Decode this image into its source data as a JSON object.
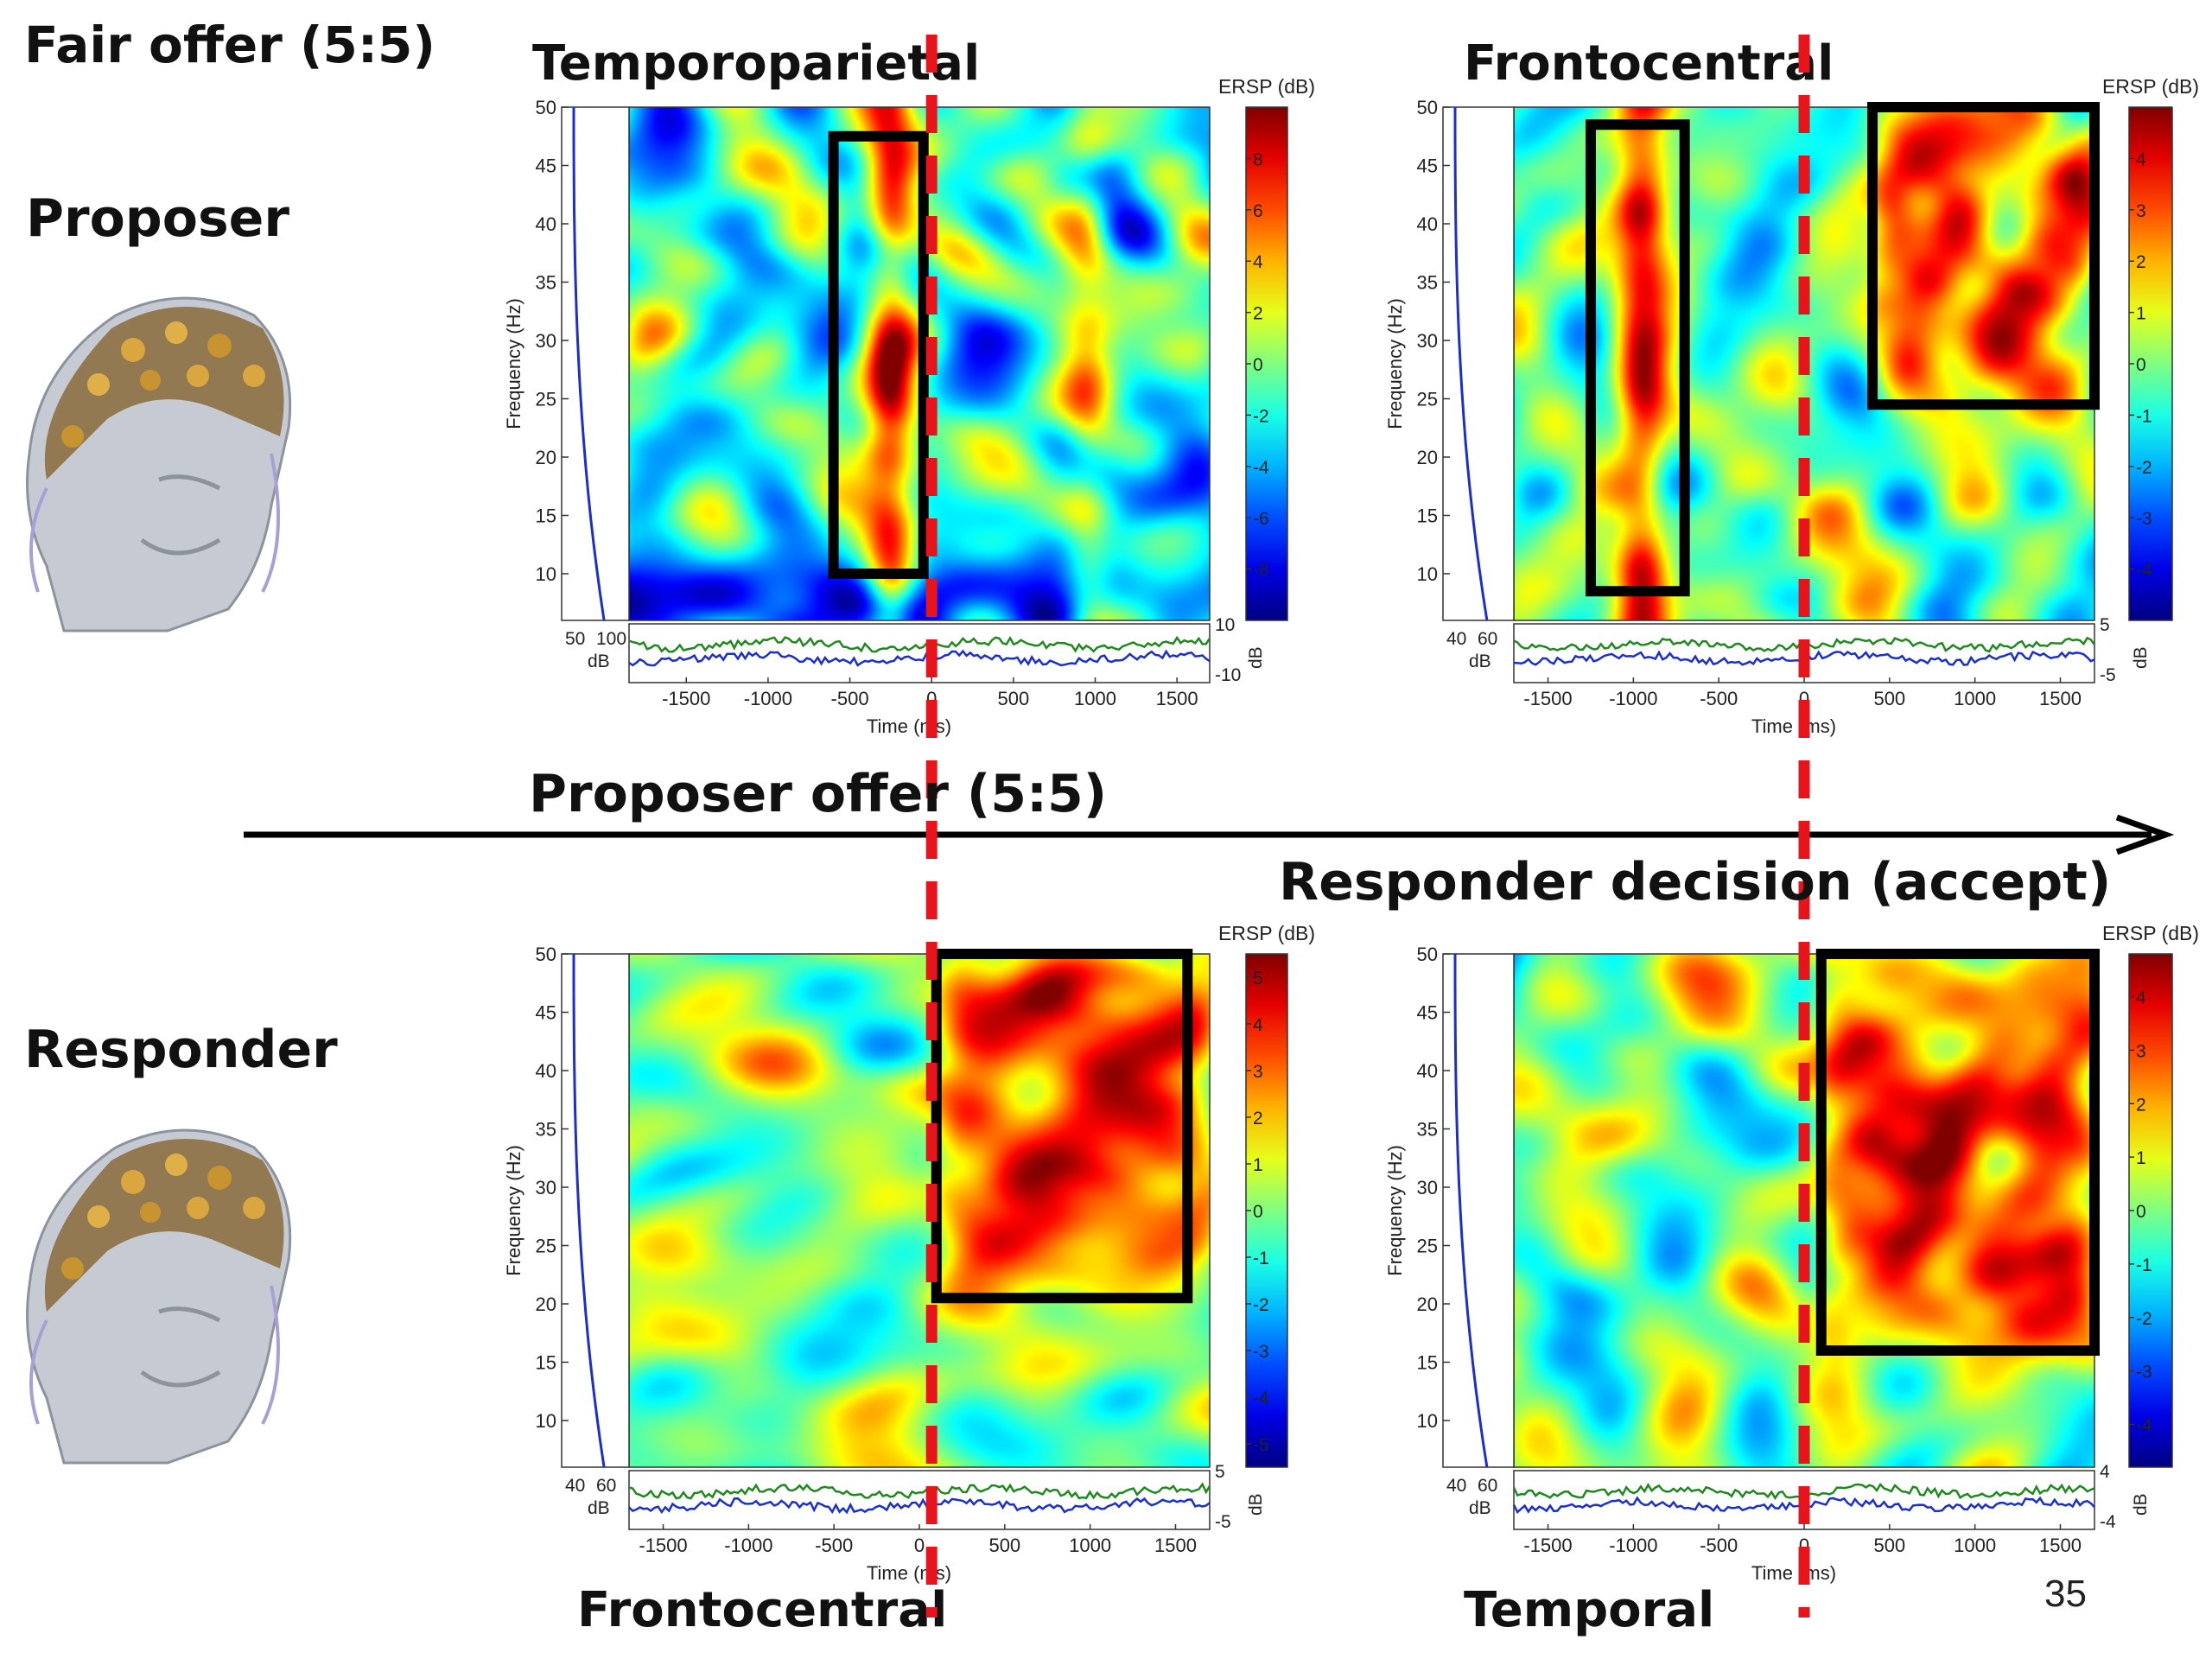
{
  "slide": {
    "title": "Fair offer (5:5)",
    "proposer_label": "Proposer",
    "responder_label": "Responder",
    "event1_label": "Proposer offer  (5:5)",
    "event2_label": "Responder decision  (accept)",
    "page_number": "35"
  },
  "colors": {
    "event_line": "#e8141c",
    "highlight_box": "#000000",
    "arrow": "#000000",
    "trace_green": "#1e8a1e",
    "trace_blue": "#1a2fd0",
    "baseline_blue": "#1a2fd0"
  },
  "chart_data": [
    {
      "type": "heatmap",
      "title": "Temporoparietal",
      "xlabel": "Time (ms)",
      "ylabel": "Frequency (Hz)",
      "xlim": [
        -1850,
        1700
      ],
      "ylim": [
        6,
        50
      ],
      "xticks": [
        -1500,
        -1000,
        -500,
        0,
        500,
        1000,
        1500
      ],
      "yticks": [
        10,
        15,
        20,
        25,
        30,
        35,
        40,
        45,
        50
      ],
      "colorbar": {
        "label": "ERSP (dB)",
        "range": [
          -10,
          10
        ],
        "ticks": [
          8,
          6,
          4,
          2,
          0,
          -2,
          -4,
          -6,
          -8
        ]
      },
      "baseline_panel": {
        "ticks": [
          "50",
          "100"
        ],
        "unit": "dB"
      },
      "trace_panel": {
        "top_tick": "10",
        "bottom_tick": "-10",
        "unit": "dB"
      },
      "highlight_boxes": [
        {
          "time_ms": [
            -600,
            -50
          ],
          "freq_hz": [
            10,
            47.5
          ]
        }
      ],
      "features": {
        "band_centers_ms": [
          -250,
          950
        ],
        "low_freq_dip": true,
        "base_level": -1.8
      }
    },
    {
      "type": "heatmap",
      "title": "Frontocentral",
      "xlabel": "Time (ms)",
      "ylabel": "Frequency (Hz)",
      "xlim": [
        -1700,
        1700
      ],
      "ylim": [
        6,
        50
      ],
      "xticks": [
        -1500,
        -1000,
        -500,
        0,
        500,
        1000,
        1500
      ],
      "yticks": [
        10,
        15,
        20,
        25,
        30,
        35,
        40,
        45,
        50
      ],
      "colorbar": {
        "label": "ERSP (dB)",
        "range": [
          -5,
          5
        ],
        "ticks": [
          4,
          3,
          2,
          1,
          0,
          -1,
          -2,
          -3,
          -4
        ]
      },
      "baseline_panel": {
        "ticks": [
          "40",
          "60"
        ],
        "unit": "dB"
      },
      "trace_panel": {
        "top_tick": "5",
        "bottom_tick": "-5",
        "unit": "dB"
      },
      "highlight_boxes": [
        {
          "time_ms": [
            -1250,
            -700
          ],
          "freq_hz": [
            8.5,
            48.5
          ]
        },
        {
          "time_ms": [
            400,
            1700
          ],
          "freq_hz": [
            24.5,
            50
          ]
        }
      ],
      "features": {
        "band_centers_ms": [
          -950
        ],
        "hot_region_ms": [
          450,
          1700
        ],
        "hot_region_hz": [
          26,
          50
        ],
        "base_level": -0.6
      }
    },
    {
      "type": "heatmap",
      "title": "Frontocentral",
      "xlabel": "Time (ms)",
      "ylabel": "Frequency (Hz)",
      "xlim": [
        -1700,
        1700
      ],
      "ylim": [
        6,
        50
      ],
      "xticks": [
        -1500,
        -1000,
        -500,
        0,
        500,
        1000,
        1500
      ],
      "yticks": [
        10,
        15,
        20,
        25,
        30,
        35,
        40,
        45,
        50
      ],
      "colorbar": {
        "label": "ERSP (dB)",
        "range": [
          -5.5,
          5.5
        ],
        "ticks": [
          5,
          4,
          3,
          2,
          1,
          0,
          -1,
          -2,
          -3,
          -4,
          -5
        ]
      },
      "baseline_panel": {
        "ticks": [
          "40",
          "60"
        ],
        "unit": "dB"
      },
      "trace_panel": {
        "top_tick": "5",
        "bottom_tick": "-5",
        "unit": "dB"
      },
      "highlight_boxes": [
        {
          "time_ms": [
            100,
            1570
          ],
          "freq_hz": [
            20.5,
            50
          ]
        }
      ],
      "features": {
        "hot_region_ms": [
          150,
          1700
        ],
        "hot_region_hz": [
          22,
          50
        ],
        "base_level": 0.0
      }
    },
    {
      "type": "heatmap",
      "title": "Temporal",
      "xlabel": "Time (ms)",
      "ylabel": "Frequency (Hz)",
      "xlim": [
        -1700,
        1700
      ],
      "ylim": [
        6,
        50
      ],
      "xticks": [
        -1500,
        -1000,
        -500,
        0,
        500,
        1000,
        1500
      ],
      "yticks": [
        10,
        15,
        20,
        25,
        30,
        35,
        40,
        45,
        50
      ],
      "colorbar": {
        "label": "ERSP (dB)",
        "range": [
          -4.8,
          4.8
        ],
        "ticks": [
          4,
          3,
          2,
          1,
          0,
          -1,
          -2,
          -3,
          -4
        ]
      },
      "baseline_panel": {
        "ticks": [
          "40",
          "60"
        ],
        "unit": "dB"
      },
      "trace_panel": {
        "top_tick": "4",
        "bottom_tick": "-4",
        "unit": "dB"
      },
      "highlight_boxes": [
        {
          "time_ms": [
            100,
            1700
          ],
          "freq_hz": [
            16,
            50
          ]
        }
      ],
      "features": {
        "hot_region_ms": [
          100,
          1700
        ],
        "hot_region_hz": [
          16,
          50
        ],
        "base_level": -0.3
      }
    }
  ]
}
